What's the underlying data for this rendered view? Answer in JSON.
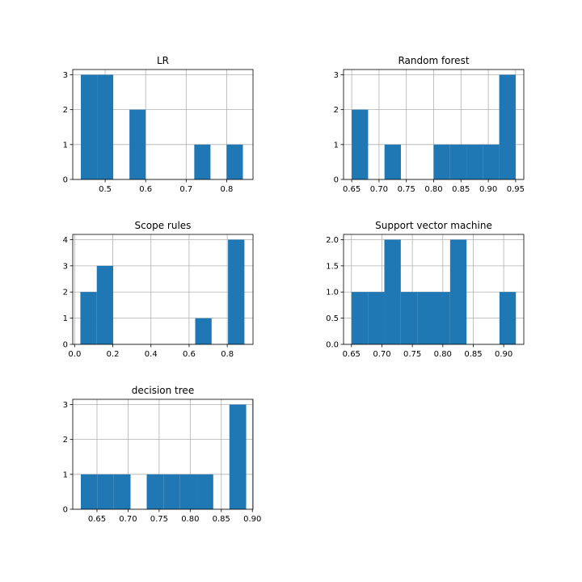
{
  "colors": {
    "bar": "#1f77b4",
    "grid": "#b0b0b0",
    "axes": "#000000"
  },
  "chart_data": [
    {
      "type": "bar",
      "title": "LR",
      "grid": true,
      "xlim": [
        0.42,
        0.865
      ],
      "ylim": [
        0,
        3.15
      ],
      "xticks": [
        0.5,
        0.6,
        0.7,
        0.8
      ],
      "xtick_labels": [
        "0.5",
        "0.6",
        "0.7",
        "0.8"
      ],
      "yticks": [
        0,
        1,
        2,
        3
      ],
      "ytick_labels": [
        "0",
        "1",
        "2",
        "3"
      ],
      "bars": [
        {
          "x0": 0.44,
          "x1": 0.48,
          "value": 3
        },
        {
          "x0": 0.48,
          "x1": 0.52,
          "value": 3
        },
        {
          "x0": 0.52,
          "x1": 0.56,
          "value": 0
        },
        {
          "x0": 0.56,
          "x1": 0.6,
          "value": 2
        },
        {
          "x0": 0.6,
          "x1": 0.64,
          "value": 0
        },
        {
          "x0": 0.64,
          "x1": 0.68,
          "value": 0
        },
        {
          "x0": 0.68,
          "x1": 0.72,
          "value": 0
        },
        {
          "x0": 0.72,
          "x1": 0.76,
          "value": 1
        },
        {
          "x0": 0.76,
          "x1": 0.8,
          "value": 0
        },
        {
          "x0": 0.8,
          "x1": 0.84,
          "value": 1
        }
      ]
    },
    {
      "type": "bar",
      "title": "Random forest",
      "grid": true,
      "xlim": [
        0.635,
        0.965
      ],
      "ylim": [
        0,
        3.15
      ],
      "xticks": [
        0.65,
        0.7,
        0.75,
        0.8,
        0.85,
        0.9,
        0.95
      ],
      "xtick_labels": [
        "0.65",
        "0.70",
        "0.75",
        "0.80",
        "0.85",
        "0.90",
        "0.95"
      ],
      "yticks": [
        0,
        1,
        2,
        3
      ],
      "ytick_labels": [
        "0",
        "1",
        "2",
        "3"
      ],
      "bars": [
        {
          "x0": 0.65,
          "x1": 0.68,
          "value": 2
        },
        {
          "x0": 0.68,
          "x1": 0.71,
          "value": 0
        },
        {
          "x0": 0.71,
          "x1": 0.74,
          "value": 1
        },
        {
          "x0": 0.74,
          "x1": 0.77,
          "value": 0
        },
        {
          "x0": 0.77,
          "x1": 0.8,
          "value": 0
        },
        {
          "x0": 0.8,
          "x1": 0.83,
          "value": 1
        },
        {
          "x0": 0.83,
          "x1": 0.86,
          "value": 1
        },
        {
          "x0": 0.86,
          "x1": 0.89,
          "value": 1
        },
        {
          "x0": 0.89,
          "x1": 0.92,
          "value": 1
        },
        {
          "x0": 0.92,
          "x1": 0.95,
          "value": 3
        }
      ]
    },
    {
      "type": "bar",
      "title": "Scope rules",
      "grid": true,
      "xlim": [
        -0.01,
        0.935
      ],
      "ylim": [
        0,
        4.2
      ],
      "xticks": [
        0.0,
        0.2,
        0.4,
        0.6,
        0.8
      ],
      "xtick_labels": [
        "0.0",
        "0.2",
        "0.4",
        "0.6",
        "0.8"
      ],
      "yticks": [
        0,
        1,
        2,
        3,
        4
      ],
      "ytick_labels": [
        "0",
        "1",
        "2",
        "3",
        "4"
      ],
      "bars": [
        {
          "x0": 0.03,
          "x1": 0.116,
          "value": 2
        },
        {
          "x0": 0.116,
          "x1": 0.202,
          "value": 3
        },
        {
          "x0": 0.202,
          "x1": 0.288,
          "value": 0
        },
        {
          "x0": 0.288,
          "x1": 0.374,
          "value": 0
        },
        {
          "x0": 0.374,
          "x1": 0.46,
          "value": 0
        },
        {
          "x0": 0.46,
          "x1": 0.546,
          "value": 0
        },
        {
          "x0": 0.546,
          "x1": 0.632,
          "value": 0
        },
        {
          "x0": 0.632,
          "x1": 0.718,
          "value": 1
        },
        {
          "x0": 0.718,
          "x1": 0.804,
          "value": 0
        },
        {
          "x0": 0.804,
          "x1": 0.89,
          "value": 4
        }
      ]
    },
    {
      "type": "bar",
      "title": "Support vector machine",
      "grid": true,
      "xlim": [
        0.637,
        0.933
      ],
      "ylim": [
        0,
        2.1
      ],
      "xticks": [
        0.65,
        0.7,
        0.75,
        0.8,
        0.85,
        0.9
      ],
      "xtick_labels": [
        "0.65",
        "0.70",
        "0.75",
        "0.80",
        "0.85",
        "0.90"
      ],
      "yticks": [
        0,
        0.5,
        1.0,
        1.5,
        2.0
      ],
      "ytick_labels": [
        "0.0",
        "0.5",
        "1.0",
        "1.5",
        "2.0"
      ],
      "bars": [
        {
          "x0": 0.65,
          "x1": 0.677,
          "value": 1
        },
        {
          "x0": 0.677,
          "x1": 0.704,
          "value": 1
        },
        {
          "x0": 0.704,
          "x1": 0.731,
          "value": 2
        },
        {
          "x0": 0.731,
          "x1": 0.758,
          "value": 1
        },
        {
          "x0": 0.758,
          "x1": 0.785,
          "value": 1
        },
        {
          "x0": 0.785,
          "x1": 0.812,
          "value": 1
        },
        {
          "x0": 0.812,
          "x1": 0.839,
          "value": 2
        },
        {
          "x0": 0.839,
          "x1": 0.866,
          "value": 0
        },
        {
          "x0": 0.866,
          "x1": 0.893,
          "value": 0
        },
        {
          "x0": 0.893,
          "x1": 0.92,
          "value": 1
        }
      ]
    },
    {
      "type": "bar",
      "title": "decision tree",
      "grid": true,
      "xlim": [
        0.611,
        0.901
      ],
      "ylim": [
        0,
        3.15
      ],
      "xticks": [
        0.65,
        0.7,
        0.75,
        0.8,
        0.85,
        0.9
      ],
      "xtick_labels": [
        "0.65",
        "0.70",
        "0.75",
        "0.80",
        "0.85",
        "0.90"
      ],
      "yticks": [
        0,
        1,
        2,
        3
      ],
      "ytick_labels": [
        "0",
        "1",
        "2",
        "3"
      ],
      "bars": [
        {
          "x0": 0.624,
          "x1": 0.651,
          "value": 1
        },
        {
          "x0": 0.651,
          "x1": 0.677,
          "value": 1
        },
        {
          "x0": 0.677,
          "x1": 0.704,
          "value": 1
        },
        {
          "x0": 0.704,
          "x1": 0.73,
          "value": 0
        },
        {
          "x0": 0.73,
          "x1": 0.757,
          "value": 1
        },
        {
          "x0": 0.757,
          "x1": 0.783,
          "value": 1
        },
        {
          "x0": 0.783,
          "x1": 0.81,
          "value": 1
        },
        {
          "x0": 0.81,
          "x1": 0.837,
          "value": 1
        },
        {
          "x0": 0.837,
          "x1": 0.863,
          "value": 0
        },
        {
          "x0": 0.863,
          "x1": 0.89,
          "value": 3
        }
      ]
    }
  ]
}
